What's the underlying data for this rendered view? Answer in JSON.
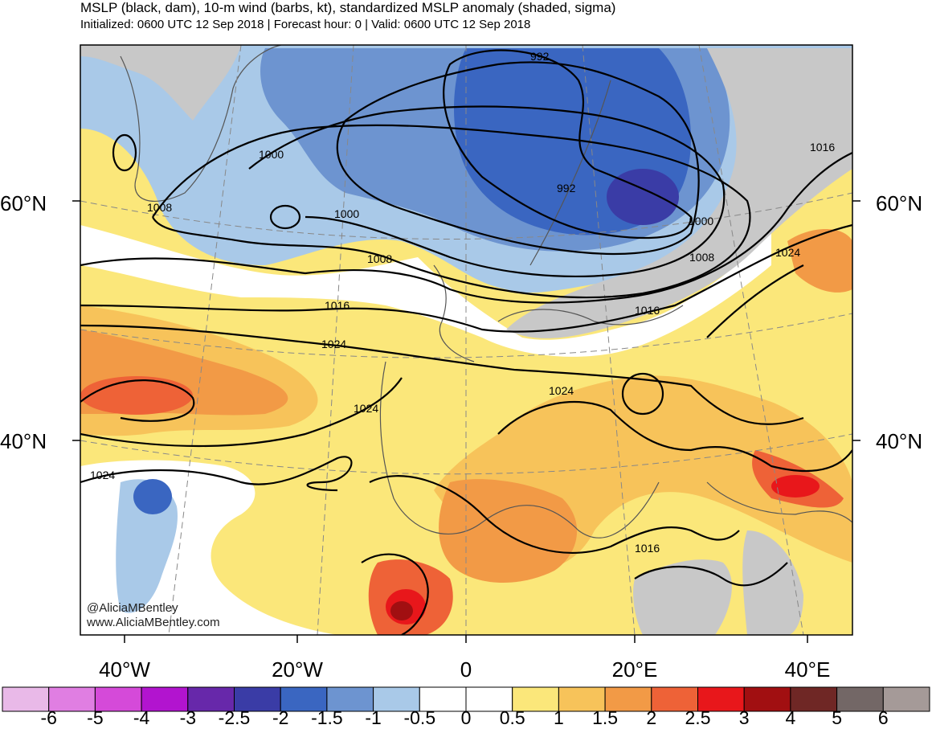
{
  "header": {
    "title": "MSLP (black, dam), 10-m wind (barbs, kt), standardized MSLP anomaly (shaded, sigma)",
    "subtitle": "Initialized: 0600 UTC 12 Sep 2018 | Forecast hour: 0 | Valid: 0600 UTC 12 Sep 2018"
  },
  "lat_labels": {
    "left": [
      "60°N",
      "40°N"
    ],
    "right": [
      "60°N",
      "40°N"
    ]
  },
  "lon_labels": [
    "40°W",
    "20°W",
    "0",
    "20°E",
    "40°E"
  ],
  "credit": {
    "handle": "@AliciaMBentley",
    "site": "www.AliciaMBentley.com"
  },
  "contour_labels": [
    "992",
    "992",
    "1000",
    "1000",
    "1000",
    "1008",
    "1008",
    "1008",
    "1016",
    "1016",
    "1016",
    "1016",
    "1024",
    "1024",
    "1024",
    "1024",
    "1024"
  ],
  "colorbar": {
    "colors": [
      "#e9b9e8",
      "#e07ee2",
      "#d54ad9",
      "#b214cf",
      "#6728aa",
      "#3a3ca6",
      "#3a66c1",
      "#6d94d0",
      "#a9c9e8",
      "#ffffff",
      "#ffffff",
      "#fbe77a",
      "#f7c35a",
      "#f29a46",
      "#ee6237",
      "#e8171b",
      "#a10f11",
      "#6f2725",
      "#736766",
      "#a59a98"
    ],
    "labels": [
      "-6",
      "-5",
      "-4",
      "-3",
      "-2.5",
      "-2",
      "-1.5",
      "-1",
      "-0.5",
      "0",
      "0.5",
      "1",
      "1.5",
      "2",
      "2.5",
      "3",
      "4",
      "5",
      "6"
    ]
  }
}
